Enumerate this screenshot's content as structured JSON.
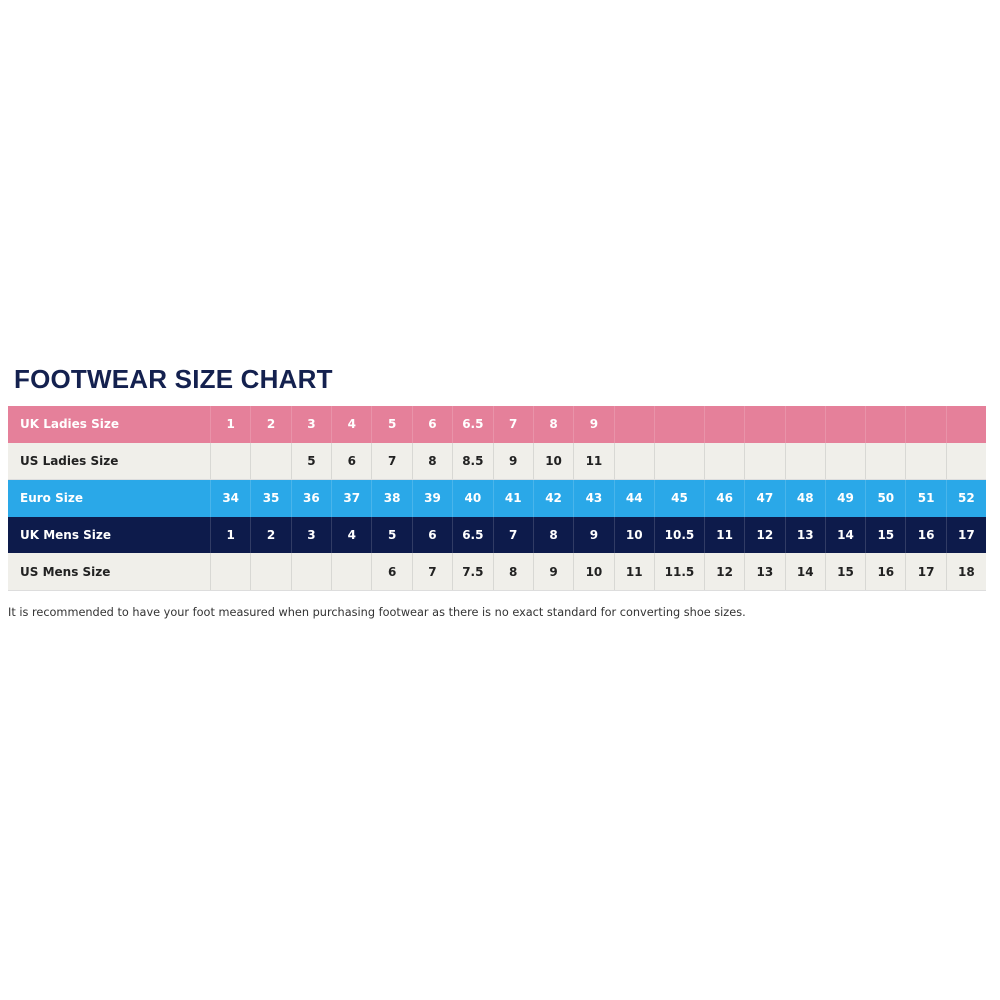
{
  "title": "FOOTWEAR SIZE CHART",
  "colors": {
    "uk_ladies": "#e5809a",
    "us": "#f0efea",
    "euro": "#2aa8e8",
    "uk_mens": "#0d1b4b",
    "title": "#14214f"
  },
  "rows": [
    {
      "label": "UK Ladies Size",
      "style": "pink",
      "values": [
        "1",
        "2",
        "3",
        "4",
        "5",
        "6",
        "6.5",
        "7",
        "8",
        "9",
        "",
        "",
        "",
        "",
        "",
        "",
        "",
        "",
        ""
      ]
    },
    {
      "label": "US Ladies Size",
      "style": "light",
      "values": [
        "",
        "",
        "5",
        "6",
        "7",
        "8",
        "8.5",
        "9",
        "10",
        "11",
        "",
        "",
        "",
        "",
        "",
        "",
        "",
        "",
        ""
      ]
    },
    {
      "label": "Euro Size",
      "style": "blue",
      "values": [
        "34",
        "35",
        "36",
        "37",
        "38",
        "39",
        "40",
        "41",
        "42",
        "43",
        "44",
        "45",
        "46",
        "47",
        "48",
        "49",
        "50",
        "51",
        "52"
      ]
    },
    {
      "label": "UK Mens Size",
      "style": "navy",
      "values": [
        "1",
        "2",
        "3",
        "4",
        "5",
        "6",
        "6.5",
        "7",
        "8",
        "9",
        "10",
        "10.5",
        "11",
        "12",
        "13",
        "14",
        "15",
        "16",
        "17"
      ]
    },
    {
      "label": "US Mens Size",
      "style": "light",
      "values": [
        "",
        "",
        "",
        "",
        "6",
        "7",
        "7.5",
        "8",
        "9",
        "10",
        "11",
        "11.5",
        "12",
        "13",
        "14",
        "15",
        "16",
        "17",
        "18"
      ]
    }
  ],
  "note": "It is recommended to have your foot measured when purchasing footwear as there is no exact standard for converting shoe sizes."
}
